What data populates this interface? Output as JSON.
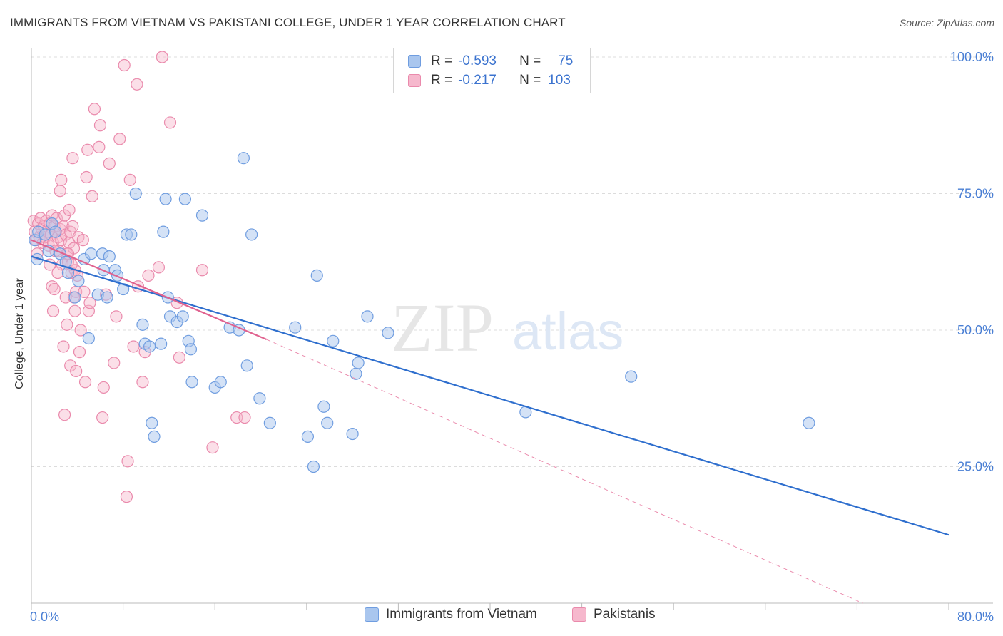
{
  "title": "IMMIGRANTS FROM VIETNAM VS PAKISTANI COLLEGE, UNDER 1 YEAR CORRELATION CHART",
  "source": "Source: ZipAtlas.com",
  "watermark": {
    "zip": "ZIP",
    "atlas": "atlas"
  },
  "colors": {
    "blue_fill": "#a9c6ee",
    "blue_stroke": "#6f9de0",
    "blue_line": "#2f6fce",
    "pink_fill": "#f6b8cd",
    "pink_stroke": "#ea8aac",
    "pink_line": "#e0628f",
    "grid": "#dcdcdc",
    "tick_text": "#4a7fd4"
  },
  "legend": {
    "r1_label": "R =",
    "r1_value": "-0.593",
    "n1_label": "N =",
    "n1_value": "75",
    "r2_label": "R =",
    "r2_value": "-0.217",
    "n2_label": "N =",
    "n2_value": "103"
  },
  "chart_data": {
    "type": "scatter",
    "title": "IMMIGRANTS FROM VIETNAM VS PAKISTANI COLLEGE, UNDER 1 YEAR CORRELATION CHART",
    "xlabel": "",
    "ylabel": "College, Under 1 year",
    "xlim": [
      0,
      80
    ],
    "ylim": [
      0,
      105
    ],
    "x_tick_labels": [
      "0.0%",
      "80.0%"
    ],
    "y_ticks": [
      25,
      50,
      75,
      100
    ],
    "y_tick_labels": [
      "25.0%",
      "50.0%",
      "75.0%",
      "100.0%"
    ],
    "grid": "horizontal dashed",
    "legend_position": "top-center",
    "series": [
      {
        "name": "Immigrants from Vietnam",
        "color": "#a9c6ee",
        "trend": {
          "x": [
            0,
            80
          ],
          "y": [
            63.5,
            12.5
          ],
          "style": "solid"
        },
        "points": [
          [
            0.3,
            66.5
          ],
          [
            0.5,
            63
          ],
          [
            0.6,
            68
          ],
          [
            1.2,
            67.5
          ],
          [
            1.5,
            64.5
          ],
          [
            1.8,
            69.5
          ],
          [
            2.1,
            68
          ],
          [
            2.5,
            64
          ],
          [
            3.0,
            62.5
          ],
          [
            3.2,
            60.5
          ],
          [
            3.8,
            56
          ],
          [
            4.1,
            59
          ],
          [
            4.6,
            63
          ],
          [
            5.0,
            48.5
          ],
          [
            5.2,
            64
          ],
          [
            5.8,
            56.5
          ],
          [
            6.2,
            64
          ],
          [
            6.3,
            61
          ],
          [
            6.6,
            56
          ],
          [
            6.8,
            63.5
          ],
          [
            7.3,
            61
          ],
          [
            7.5,
            60
          ],
          [
            8.0,
            57.5
          ],
          [
            8.3,
            67.5
          ],
          [
            8.7,
            67.5
          ],
          [
            9.1,
            75
          ],
          [
            9.7,
            51
          ],
          [
            9.9,
            47.5
          ],
          [
            10.3,
            47
          ],
          [
            10.5,
            33
          ],
          [
            10.7,
            30.5
          ],
          [
            11.3,
            47.5
          ],
          [
            11.5,
            68
          ],
          [
            11.7,
            74
          ],
          [
            11.9,
            56
          ],
          [
            12.1,
            52.5
          ],
          [
            12.7,
            51.5
          ],
          [
            13.2,
            52.5
          ],
          [
            13.4,
            74
          ],
          [
            13.7,
            48
          ],
          [
            13.9,
            46.5
          ],
          [
            14.0,
            40.5
          ],
          [
            14.9,
            71
          ],
          [
            16.0,
            39.5
          ],
          [
            16.5,
            40.5
          ],
          [
            17.3,
            50.5
          ],
          [
            18.1,
            50
          ],
          [
            18.5,
            81.5
          ],
          [
            18.8,
            43.5
          ],
          [
            19.2,
            67.5
          ],
          [
            19.9,
            37.5
          ],
          [
            20.8,
            33
          ],
          [
            23.0,
            50.5
          ],
          [
            24.1,
            30.5
          ],
          [
            24.6,
            25
          ],
          [
            24.9,
            60
          ],
          [
            25.5,
            36
          ],
          [
            25.8,
            33
          ],
          [
            26.3,
            48
          ],
          [
            28.0,
            31
          ],
          [
            28.3,
            42
          ],
          [
            28.5,
            44
          ],
          [
            29.3,
            52.5
          ],
          [
            31.1,
            49.5
          ],
          [
            43.1,
            35
          ],
          [
            52.3,
            41.5
          ],
          [
            67.8,
            33
          ]
        ]
      },
      {
        "name": "Pakistanis",
        "color": "#f6b8cd",
        "trend": {
          "x": [
            0,
            20.5
          ],
          "y": [
            66.5,
            48.3
          ],
          "style": "solid"
        },
        "trend_extension": {
          "x": [
            20.5,
            72.5
          ],
          "y": [
            48.3,
            0
          ],
          "style": "dashed"
        },
        "points": [
          [
            0.2,
            70
          ],
          [
            0.3,
            68
          ],
          [
            0.4,
            66.5
          ],
          [
            0.5,
            64
          ],
          [
            0.6,
            69.5
          ],
          [
            0.7,
            67
          ],
          [
            0.8,
            70.5
          ],
          [
            0.9,
            68.5
          ],
          [
            1.0,
            66
          ],
          [
            1.1,
            69
          ],
          [
            1.2,
            67
          ],
          [
            1.3,
            70
          ],
          [
            1.4,
            68
          ],
          [
            1.5,
            65.5
          ],
          [
            1.6,
            69.5
          ],
          [
            1.7,
            67.5
          ],
          [
            1.8,
            71
          ],
          [
            1.9,
            66
          ],
          [
            2.0,
            69
          ],
          [
            2.1,
            68
          ],
          [
            2.2,
            70.5
          ],
          [
            2.3,
            67
          ],
          [
            2.4,
            64.5
          ],
          [
            2.5,
            68.5
          ],
          [
            2.6,
            66.5
          ],
          [
            2.7,
            62
          ],
          [
            2.8,
            69
          ],
          [
            2.9,
            71
          ],
          [
            3.0,
            67.5
          ],
          [
            3.1,
            64
          ],
          [
            3.2,
            62.5
          ],
          [
            3.3,
            66
          ],
          [
            3.4,
            68
          ],
          [
            3.5,
            60.5
          ],
          [
            3.6,
            69
          ],
          [
            3.7,
            65
          ],
          [
            3.8,
            61
          ],
          [
            3.9,
            57
          ],
          [
            4.0,
            60
          ],
          [
            4.1,
            67
          ],
          [
            1.6,
            62
          ],
          [
            1.8,
            58
          ],
          [
            1.9,
            53.5
          ],
          [
            2.0,
            57.5
          ],
          [
            2.1,
            64.5
          ],
          [
            2.3,
            60.5
          ],
          [
            2.5,
            75.5
          ],
          [
            2.6,
            77.5
          ],
          [
            2.8,
            47
          ],
          [
            2.9,
            34.5
          ],
          [
            3.0,
            56
          ],
          [
            3.1,
            51
          ],
          [
            3.2,
            64
          ],
          [
            3.3,
            72
          ],
          [
            3.4,
            43.5
          ],
          [
            3.5,
            62
          ],
          [
            3.6,
            81.5
          ],
          [
            3.7,
            56
          ],
          [
            3.8,
            53.5
          ],
          [
            3.9,
            42.5
          ],
          [
            4.2,
            46
          ],
          [
            4.3,
            50
          ],
          [
            4.5,
            66.5
          ],
          [
            4.6,
            57
          ],
          [
            4.7,
            40.5
          ],
          [
            4.8,
            78
          ],
          [
            4.9,
            83
          ],
          [
            5.0,
            53.5
          ],
          [
            5.1,
            55
          ],
          [
            5.3,
            74.5
          ],
          [
            5.5,
            90.5
          ],
          [
            5.9,
            83.5
          ],
          [
            6.0,
            87.5
          ],
          [
            6.2,
            34
          ],
          [
            6.3,
            39.5
          ],
          [
            6.5,
            56.5
          ],
          [
            6.8,
            80.5
          ],
          [
            7.2,
            44
          ],
          [
            7.4,
            52.5
          ],
          [
            7.7,
            85
          ],
          [
            8.1,
            98.5
          ],
          [
            8.3,
            19.5
          ],
          [
            8.4,
            26
          ],
          [
            8.6,
            77.5
          ],
          [
            8.9,
            47
          ],
          [
            9.2,
            95
          ],
          [
            9.3,
            58
          ],
          [
            9.7,
            40.5
          ],
          [
            9.9,
            46
          ],
          [
            10.2,
            60
          ],
          [
            11.1,
            61.5
          ],
          [
            11.4,
            100
          ],
          [
            12.1,
            88
          ],
          [
            12.7,
            55
          ],
          [
            12.9,
            45
          ],
          [
            14.9,
            61
          ],
          [
            15.8,
            28.5
          ],
          [
            17.9,
            34
          ],
          [
            18.6,
            34
          ]
        ]
      }
    ]
  },
  "bottom_legend": {
    "series1": "Immigrants from Vietnam",
    "series2": "Pakistanis"
  }
}
